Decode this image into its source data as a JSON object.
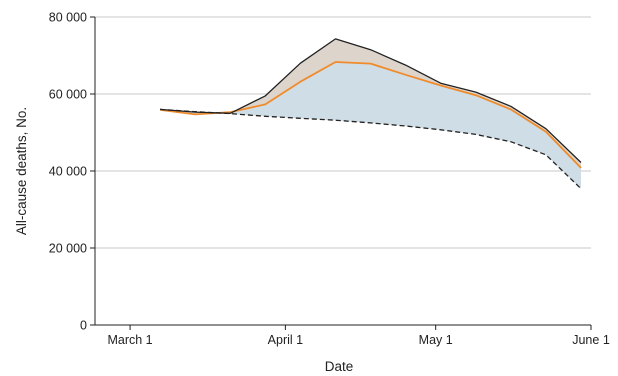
{
  "chart_data": {
    "type": "area",
    "xlabel": "Date",
    "ylabel": "All-cause deaths, No.",
    "xlim": [
      "2020-02-23",
      "2020-06-01"
    ],
    "ylim": [
      0,
      80000
    ],
    "grid": "horizontal",
    "x_ticks": [
      {
        "date": "2020-03-01",
        "label": "March 1"
      },
      {
        "date": "2020-04-01",
        "label": "April 1"
      },
      {
        "date": "2020-05-01",
        "label": "May 1"
      },
      {
        "date": "2020-06-01",
        "label": "June 1"
      }
    ],
    "y_ticks": [
      {
        "value": 0,
        "label": "0"
      },
      {
        "value": 20000,
        "label": "20 000"
      },
      {
        "value": 40000,
        "label": "40 000"
      },
      {
        "value": 60000,
        "label": "60 000"
      },
      {
        "value": 80000,
        "label": "80 000"
      }
    ],
    "colors": {
      "observed": "#222222",
      "expected": "#222222",
      "covid": "#f08b2c",
      "excess_covid_fill": "#cfdde6",
      "excess_other_fill": "#ddd5cc",
      "grid": "#c8c8c8",
      "axis": "#222222"
    },
    "series": [
      {
        "x": [
          "2020-03-07",
          "2020-03-14",
          "2020-03-21",
          "2020-03-28",
          "2020-04-04",
          "2020-04-11",
          "2020-04-18",
          "2020-04-25",
          "2020-05-02",
          "2020-05-09",
          "2020-05-16",
          "2020-05-23",
          "2020-05-30"
        ],
        "values": [
          56000,
          55300,
          55000,
          59500,
          68000,
          74300,
          71500,
          67500,
          62800,
          60500,
          56800,
          51000,
          42200
        ],
        "style": "solid"
      },
      {
        "x": [
          "2020-03-07",
          "2020-03-14",
          "2020-03-21",
          "2020-03-28",
          "2020-04-04",
          "2020-04-11",
          "2020-04-18",
          "2020-04-25",
          "2020-05-02",
          "2020-05-09",
          "2020-05-16",
          "2020-05-23",
          "2020-05-30"
        ],
        "values": [
          56000,
          55400,
          54900,
          54200,
          53700,
          53200,
          52500,
          51700,
          50700,
          49500,
          47600,
          44200,
          35400
        ],
        "style": "dashed"
      },
      {
        "x": [
          "2020-03-07",
          "2020-03-14",
          "2020-03-21",
          "2020-03-28",
          "2020-04-04",
          "2020-04-11",
          "2020-04-18",
          "2020-04-25",
          "2020-05-02",
          "2020-05-09",
          "2020-05-16",
          "2020-05-23",
          "2020-05-30"
        ],
        "values": [
          55900,
          54700,
          55300,
          57300,
          63200,
          68300,
          67900,
          65000,
          62200,
          59700,
          56000,
          50200,
          40800
        ],
        "style": "solid"
      }
    ]
  }
}
